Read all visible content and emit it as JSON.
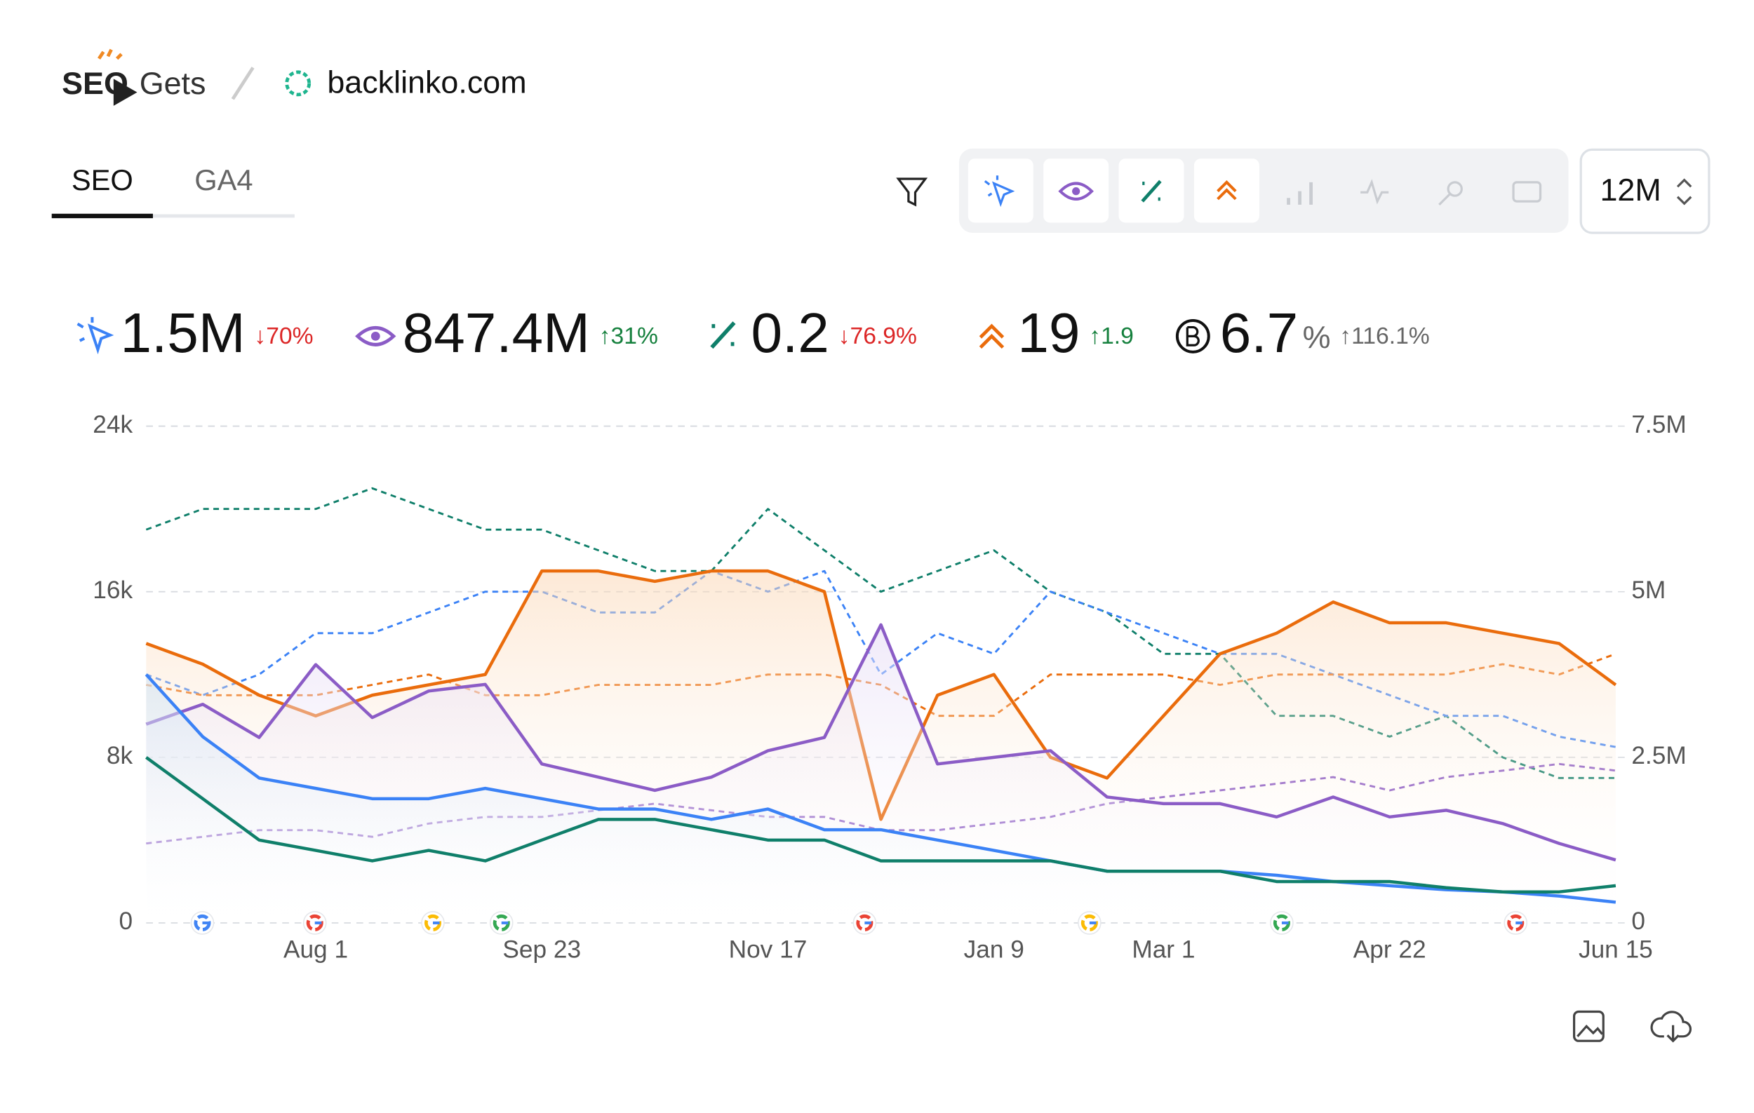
{
  "header": {
    "brand": [
      "SEO",
      "Gets"
    ],
    "site": "backlinko.com"
  },
  "tabs": [
    "SEO",
    "GA4"
  ],
  "period": "12M",
  "kpis": [
    {
      "value": "1.5M",
      "change": "↓70%",
      "trend": "down"
    },
    {
      "value": "847.4M",
      "change": "↑31%",
      "trend": "up"
    },
    {
      "value": "0.2",
      "change": "↓76.9%",
      "trend": "down"
    },
    {
      "value": "19",
      "change": "↑1.9",
      "trend": "up"
    },
    {
      "value": "6.7",
      "unit": "%",
      "change": "↑116.1%",
      "trend": "neutral"
    }
  ],
  "chart_data": {
    "type": "line",
    "categories": [
      null,
      null,
      null,
      "Aug 1",
      null,
      null,
      null,
      "Sep 23",
      null,
      null,
      null,
      "Nov 17",
      null,
      null,
      null,
      "Jan 9",
      null,
      null,
      "Mar 1",
      null,
      null,
      null,
      "Apr 22",
      null,
      null,
      null,
      "Jun 15"
    ],
    "ylim": [
      0,
      24000
    ],
    "yticks": [
      0,
      {
        "value": 8000,
        "label": "8k"
      },
      {
        "value": 16000,
        "label": "16k"
      },
      {
        "value": 24000,
        "label": "24k"
      }
    ],
    "y2lim": [
      0,
      7500000
    ],
    "y2ticks": [
      0,
      {
        "value": 2500000,
        "label": "2.5M"
      },
      {
        "value": 5000000,
        "label": "5M"
      },
      {
        "value": 7500000,
        "label": "7.5M"
      }
    ],
    "grid": true,
    "series": [
      {
        "color": "#0f7f6a",
        "dashed": true,
        "values": [
          19000,
          20000,
          20000,
          20000,
          21000,
          20000,
          19000,
          19000,
          18000,
          17000,
          17000,
          20000,
          18000,
          16000,
          17000,
          18000,
          16000,
          15000,
          13000,
          13000,
          10000,
          10000,
          9000,
          10000,
          8000,
          7000,
          7000
        ]
      },
      {
        "color": "#3b82f6",
        "dashed": true,
        "values": [
          12000,
          11000,
          12000,
          14000,
          14000,
          15000,
          16000,
          16000,
          15000,
          15000,
          17000,
          16000,
          17000,
          12000,
          14000,
          13000,
          16000,
          15000,
          14000,
          13000,
          13000,
          12000,
          11000,
          10000,
          10000,
          9000,
          8500
        ]
      },
      {
        "color": "#ea6c0c",
        "dashed": true,
        "values": [
          11500,
          11000,
          11000,
          11000,
          11500,
          12000,
          11000,
          11000,
          11500,
          11500,
          11500,
          12000,
          12000,
          11500,
          10000,
          10000,
          12000,
          12000,
          12000,
          11500,
          12000,
          12000,
          12000,
          12000,
          12500,
          12000,
          13000
        ]
      },
      {
        "color": "#8b5cc6",
        "dashed": true,
        "axis": "y2",
        "values": [
          1200000,
          1300000,
          1400000,
          1400000,
          1300000,
          1500000,
          1600000,
          1600000,
          1700000,
          1800000,
          1700000,
          1600000,
          1600000,
          1400000,
          1400000,
          1500000,
          1600000,
          1800000,
          1900000,
          2000000,
          2100000,
          2200000,
          2000000,
          2200000,
          2300000,
          2400000,
          2300000
        ]
      },
      {
        "color": "#ea6c0c",
        "area": true,
        "values": [
          13500,
          12500,
          11000,
          10000,
          11000,
          11500,
          12000,
          17000,
          17000,
          16500,
          17000,
          17000,
          16000,
          5000,
          11000,
          12000,
          8000,
          7000,
          10000,
          13000,
          14000,
          15500,
          14500,
          14500,
          14000,
          13500,
          11500
        ]
      },
      {
        "color": "#8b5cc6",
        "area": true,
        "axis": "y2",
        "values": [
          3000000,
          3300000,
          2800000,
          3900000,
          3100000,
          3500000,
          3600000,
          2400000,
          2200000,
          2000000,
          2200000,
          2600000,
          2800000,
          4500000,
          2400000,
          2500000,
          2600000,
          1900000,
          1800000,
          1800000,
          1600000,
          1900000,
          1600000,
          1700000,
          1500000,
          1200000,
          950000
        ]
      },
      {
        "color": "#3b82f6",
        "area": true,
        "values": [
          12000,
          9000,
          7000,
          6500,
          6000,
          6000,
          6500,
          6000,
          5500,
          5500,
          5000,
          5500,
          4500,
          4500,
          4000,
          3500,
          3000,
          2500,
          2500,
          2500,
          2300,
          2000,
          1800,
          1600,
          1500,
          1300,
          1000
        ]
      },
      {
        "color": "#0f7f6a",
        "values": [
          8000,
          6000,
          4000,
          3500,
          3000,
          3500,
          3000,
          4000,
          5000,
          5000,
          4500,
          4000,
          4000,
          3000,
          3000,
          3000,
          3000,
          2500,
          2500,
          2500,
          2000,
          2000,
          2000,
          1700,
          1500,
          1500,
          1800
        ]
      }
    ]
  }
}
